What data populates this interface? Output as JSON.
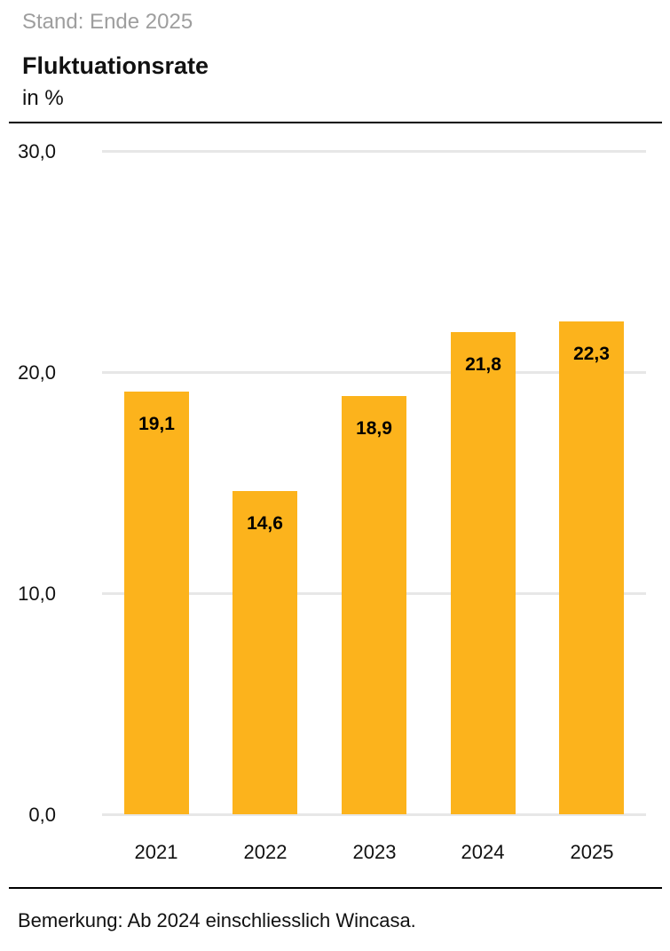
{
  "header": {
    "stand_label": "Stand: Ende 2025",
    "title": "Fluktuationsrate",
    "subtitle": "in %"
  },
  "footer": {
    "note": "Bemerkung: Ab 2024 einschliesslich Wincasa."
  },
  "colors": {
    "bar": "#FCB31C",
    "gridline": "#E7E7E7",
    "stand_text": "#9E9E9E",
    "text": "#111111"
  },
  "chart_data": {
    "type": "bar",
    "title": "Fluktuationsrate",
    "subtitle": "in %",
    "categories": [
      "2021",
      "2022",
      "2023",
      "2024",
      "2025"
    ],
    "values": [
      19.1,
      14.6,
      18.9,
      21.8,
      22.3
    ],
    "value_labels": [
      "19,1",
      "14,6",
      "18,9",
      "21,8",
      "22,3"
    ],
    "ylim": [
      0,
      30
    ],
    "yticks": [
      0,
      10,
      20,
      30
    ],
    "ytick_labels": [
      "0,0",
      "10,0",
      "20,0",
      "30,0"
    ],
    "grid": true,
    "legend": false,
    "value_label_position": "inside-top",
    "note": "Bemerkung: Ab 2024 einschliesslich Wincasa."
  }
}
